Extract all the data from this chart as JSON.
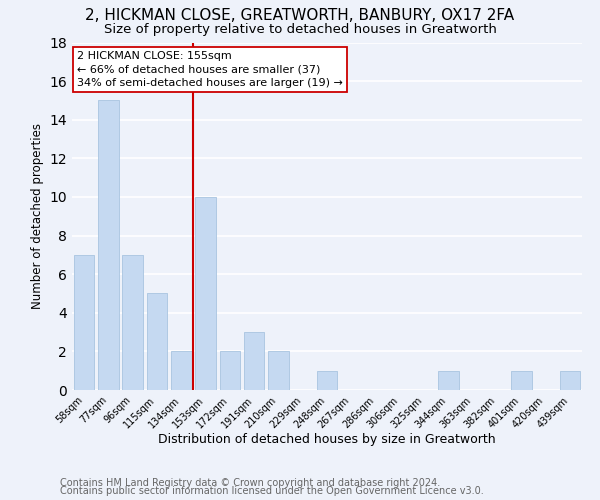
{
  "title": "2, HICKMAN CLOSE, GREATWORTH, BANBURY, OX17 2FA",
  "subtitle": "Size of property relative to detached houses in Greatworth",
  "xlabel": "Distribution of detached houses by size in Greatworth",
  "ylabel": "Number of detached properties",
  "bar_color": "#c5d9f1",
  "bar_edge_color": "#a8c4e0",
  "bin_labels": [
    "58sqm",
    "77sqm",
    "96sqm",
    "115sqm",
    "134sqm",
    "153sqm",
    "172sqm",
    "191sqm",
    "210sqm",
    "229sqm",
    "248sqm",
    "267sqm",
    "286sqm",
    "306sqm",
    "325sqm",
    "344sqm",
    "363sqm",
    "382sqm",
    "401sqm",
    "420sqm",
    "439sqm"
  ],
  "bar_heights": [
    7,
    15,
    7,
    5,
    2,
    10,
    2,
    3,
    2,
    0,
    1,
    0,
    0,
    0,
    0,
    1,
    0,
    0,
    1,
    0,
    1
  ],
  "ylim": [
    0,
    18
  ],
  "yticks": [
    0,
    2,
    4,
    6,
    8,
    10,
    12,
    14,
    16,
    18
  ],
  "vline_index": 5,
  "vline_color": "#cc0000",
  "annotation_line1": "2 HICKMAN CLOSE: 155sqm",
  "annotation_line2": "← 66% of detached houses are smaller (37)",
  "annotation_line3": "34% of semi-detached houses are larger (19) →",
  "annotation_box_color": "#ffffff",
  "annotation_box_edge": "#cc0000",
  "footnote1": "Contains HM Land Registry data © Crown copyright and database right 2024.",
  "footnote2": "Contains public sector information licensed under the Open Government Licence v3.0.",
  "background_color": "#eef2fa",
  "grid_color": "#ffffff",
  "title_fontsize": 11,
  "subtitle_fontsize": 9.5,
  "ylabel_fontsize": 8.5,
  "xlabel_fontsize": 9,
  "tick_fontsize": 7,
  "annotation_fontsize": 8,
  "footnote_fontsize": 7
}
